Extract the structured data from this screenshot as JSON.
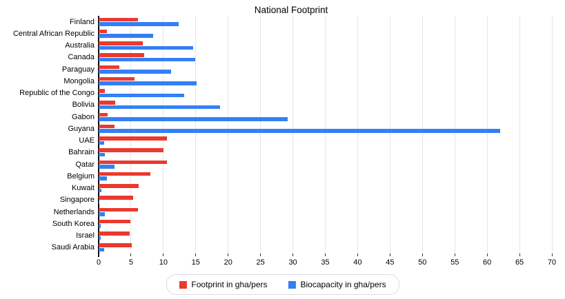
{
  "title": "National Footprint",
  "colors": {
    "footprint": "#ea3a2d",
    "biocapacity": "#3380f6",
    "gridline": "#e6e6e6",
    "axis": "#000000",
    "tick": "#333333",
    "legend_border": "#dadce0"
  },
  "chart_data": {
    "type": "bar",
    "orientation": "horizontal",
    "title": "National Footprint",
    "categories": [
      "Finland",
      "Central African Republic",
      "Australia",
      "Canada",
      "Paraguay",
      "Mongolia",
      "Republic of the Congo",
      "Bolivia",
      "Gabon",
      "Guyana",
      "UAE",
      "Bahrain",
      "Qatar",
      "Belgium",
      "Kuwait",
      "Singapore",
      "Netherlands",
      "South Korea",
      "Israel",
      "Saudi Arabia"
    ],
    "series": [
      {
        "name": "Footprint in gha/pers",
        "color": "#ea3a2d",
        "values": [
          6.1,
          1.3,
          6.8,
          7.0,
          3.2,
          5.5,
          1.0,
          2.6,
          1.4,
          2.4,
          10.6,
          10.0,
          10.5,
          8.0,
          6.2,
          5.3,
          6.1,
          4.9,
          4.8,
          5.1
        ]
      },
      {
        "name": "Biocapacity in gha/pers",
        "color": "#3380f6",
        "values": [
          12.4,
          8.4,
          14.6,
          14.9,
          11.2,
          15.1,
          13.2,
          18.8,
          29.2,
          62.0,
          0.8,
          1.0,
          2.4,
          1.3,
          0.4,
          0.05,
          1.0,
          0.3,
          0.3,
          0.8
        ]
      }
    ],
    "x_axis": {
      "min": 0,
      "max": 70,
      "tick_interval": 5,
      "tick_labels": [
        "0",
        "5",
        "10",
        "15",
        "20",
        "25",
        "30",
        "35",
        "40",
        "45",
        "50",
        "55",
        "60",
        "65",
        "70"
      ]
    },
    "grid": true,
    "legend_position": "bottom"
  }
}
